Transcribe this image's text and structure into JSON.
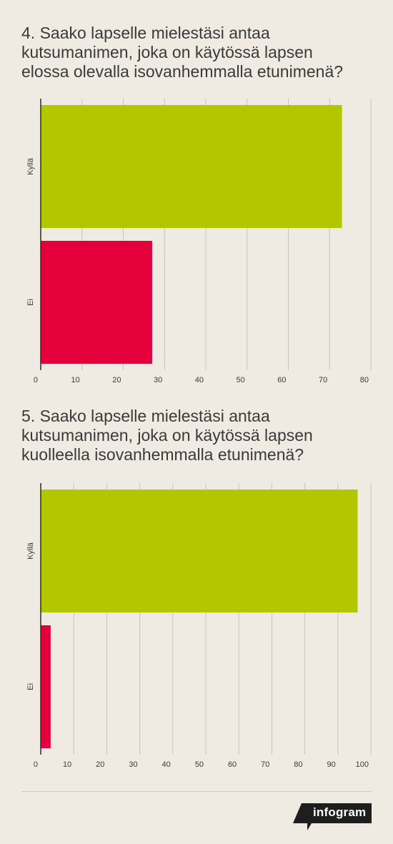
{
  "chart_data": [
    {
      "type": "bar",
      "orientation": "horizontal",
      "title": "4. Saako lapselle mielestäsi antaa\nkutsumanimen, joka on käytössä lapsen\nelossa olevalla isovanhemmalla etunimenä?",
      "categories": [
        "Kyllä",
        "Ei"
      ],
      "values": [
        73,
        27
      ],
      "colors": [
        "#b2c700",
        "#e4003b"
      ],
      "xlim": [
        0,
        80
      ],
      "xticks": [
        "0",
        "10",
        "20",
        "30",
        "40",
        "50",
        "60",
        "70",
        "80"
      ],
      "grid": true
    },
    {
      "type": "bar",
      "orientation": "horizontal",
      "title": "5. Saako lapselle mielestäsi antaa\nkutsumanimen, joka on käytössä lapsen\nkuolleella isovanhemmalla etunimenä?",
      "categories": [
        "Kyllä",
        "Ei"
      ],
      "values": [
        96,
        3
      ],
      "colors": [
        "#b2c700",
        "#e4003b"
      ],
      "xlim": [
        0,
        100
      ],
      "xticks": [
        "0",
        "10",
        "20",
        "30",
        "40",
        "50",
        "60",
        "70",
        "80",
        "90",
        "100"
      ],
      "grid": true
    }
  ],
  "footer": {
    "brand": "infogram"
  }
}
